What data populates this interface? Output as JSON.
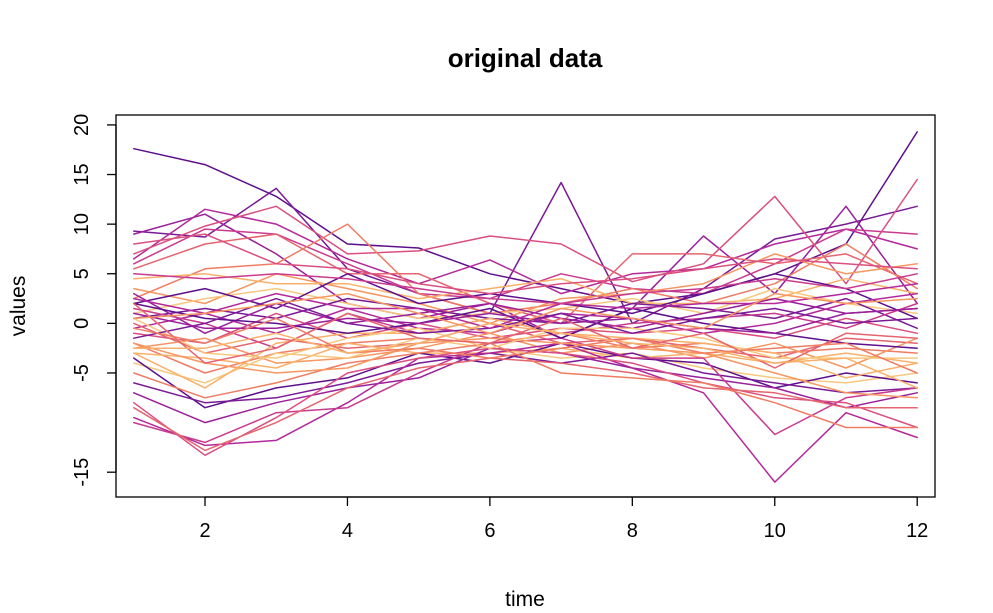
{
  "chart_data": {
    "type": "line",
    "title": "original data",
    "xlabel": "time",
    "ylabel": "values",
    "xlim": [
      0.75,
      12.25
    ],
    "ylim": [
      -17.5,
      21
    ],
    "x": [
      1,
      2,
      3,
      4,
      5,
      6,
      7,
      8,
      9,
      10,
      11,
      12
    ],
    "x_ticks": [
      2,
      4,
      6,
      8,
      10,
      12
    ],
    "y_ticks": [
      -15,
      -5,
      0,
      5,
      10,
      15,
      20
    ],
    "grid": false,
    "legend": "none",
    "palette": [
      "#5e0f8c",
      "#7a1a96",
      "#9a1f9b",
      "#b3289a",
      "#c93b8f",
      "#da4f80",
      "#e5646f",
      "#ef7c63",
      "#f69660",
      "#f9b06a",
      "#f8c87e"
    ],
    "series": [
      {
        "values": [
          17.6,
          16.0,
          12.8,
          8.0,
          7.6,
          5.0,
          3.5,
          2.0,
          3.0,
          5.0,
          8.0,
          19.3
        ]
      },
      {
        "values": [
          9.3,
          8.7,
          13.6,
          5.5,
          3.0,
          1.0,
          14.2,
          0.0,
          3.5,
          8.5,
          10.0,
          11.8
        ]
      },
      {
        "values": [
          9.0,
          11.0,
          7.0,
          2.0,
          0.5,
          2.0,
          -1.5,
          1.5,
          8.8,
          3.0,
          11.8,
          2.0
        ]
      },
      {
        "values": [
          6.5,
          11.5,
          10.0,
          6.5,
          4.0,
          6.4,
          3.0,
          5.0,
          5.5,
          8.0,
          9.5,
          7.5
        ]
      },
      {
        "values": [
          6.0,
          9.5,
          9.0,
          6.0,
          3.0,
          2.5,
          5.0,
          3.5,
          3.0,
          6.0,
          9.5,
          9.0
        ]
      },
      {
        "values": [
          7.0,
          9.8,
          11.8,
          7.0,
          7.3,
          8.8,
          8.0,
          4.2,
          6.0,
          12.8,
          4.0,
          14.5
        ]
      },
      {
        "values": [
          5.5,
          8.0,
          9.0,
          5.0,
          5.0,
          2.0,
          0.0,
          7.0,
          7.0,
          6.0,
          7.0,
          4.0
        ]
      },
      {
        "values": [
          2.5,
          5.5,
          6.0,
          10.0,
          3.0,
          1.0,
          2.0,
          3.5,
          2.0,
          4.0,
          8.0,
          3.5
        ]
      },
      {
        "values": [
          3.5,
          2.0,
          5.0,
          3.5,
          2.0,
          0.0,
          2.5,
          3.0,
          4.0,
          7.0,
          5.0,
          6.0
        ]
      },
      {
        "values": [
          4.5,
          5.0,
          4.0,
          4.0,
          2.5,
          3.5,
          4.5,
          2.0,
          2.0,
          2.5,
          4.5,
          3.0
        ]
      },
      {
        "values": [
          1.0,
          2.5,
          3.5,
          2.0,
          0.5,
          1.0,
          1.5,
          2.5,
          1.0,
          3.5,
          2.0,
          1.0
        ]
      },
      {
        "values": [
          2.0,
          3.5,
          1.5,
          5.0,
          2.0,
          3.0,
          2.0,
          1.0,
          3.0,
          5.0,
          3.5,
          0.5
        ]
      },
      {
        "values": [
          0.5,
          1.5,
          0.5,
          2.5,
          1.5,
          0.5,
          0.0,
          2.0,
          1.5,
          0.5,
          2.5,
          -0.5
        ]
      },
      {
        "values": [
          3.0,
          -1.0,
          2.0,
          0.0,
          1.0,
          2.0,
          0.5,
          -0.5,
          1.0,
          2.5,
          1.0,
          1.5
        ]
      },
      {
        "values": [
          -0.5,
          1.0,
          -1.0,
          1.5,
          -0.5,
          -1.0,
          1.0,
          0.5,
          -1.0,
          0.0,
          2.0,
          3.0
        ]
      },
      {
        "values": [
          1.5,
          0.0,
          -2.5,
          1.0,
          -1.0,
          0.5,
          -1.0,
          0.0,
          0.5,
          1.0,
          -0.5,
          2.0
        ]
      },
      {
        "values": [
          -1.0,
          -2.0,
          1.0,
          -1.5,
          0.0,
          -1.5,
          -0.5,
          -1.0,
          -0.5,
          -1.5,
          0.5,
          -1.0
        ]
      },
      {
        "values": [
          0.0,
          -3.0,
          -1.5,
          -2.5,
          -2.0,
          0.0,
          -2.0,
          -1.5,
          -2.5,
          -3.5,
          -1.5,
          -2.0
        ]
      },
      {
        "values": [
          -2.0,
          -5.0,
          -3.0,
          -2.0,
          -1.5,
          -2.0,
          -1.0,
          -2.5,
          -2.0,
          -3.0,
          -2.5,
          -3.0
        ]
      },
      {
        "values": [
          -2.5,
          -1.5,
          -4.0,
          -3.5,
          -2.5,
          -1.0,
          -3.0,
          -2.0,
          -3.5,
          -2.0,
          -4.5,
          -1.5
        ]
      },
      {
        "values": [
          -3.0,
          -3.5,
          -4.5,
          -2.0,
          -3.0,
          -3.0,
          -2.5,
          -3.5,
          -3.0,
          -4.0,
          -3.0,
          -4.0
        ]
      },
      {
        "values": [
          -4.0,
          -6.0,
          -3.0,
          -3.5,
          -1.5,
          -2.5,
          -3.5,
          -3.0,
          -4.5,
          -5.5,
          -6.0,
          -5.0
        ]
      },
      {
        "values": [
          -3.5,
          -8.5,
          -6.5,
          -5.5,
          -3.0,
          -4.0,
          -2.0,
          -3.5,
          -4.0,
          -6.5,
          -5.0,
          -6.0
        ]
      },
      {
        "values": [
          -6.0,
          -8.0,
          -7.5,
          -6.0,
          -4.0,
          -3.0,
          -4.0,
          -3.0,
          -5.0,
          -6.0,
          -7.0,
          -6.5
        ]
      },
      {
        "values": [
          -7.0,
          -10.0,
          -8.0,
          -6.5,
          -5.5,
          -2.5,
          -3.0,
          -4.5,
          -5.5,
          -6.5,
          -8.5,
          -7.0
        ]
      },
      {
        "values": [
          -9.5,
          -12.3,
          -11.8,
          -8.0,
          -3.5,
          -3.0,
          -2.0,
          -4.5,
          -7.0,
          -16.0,
          -9.0,
          -11.5
        ]
      },
      {
        "values": [
          -10.0,
          -12.0,
          -9.0,
          -8.5,
          -5.0,
          -2.0,
          -1.5,
          -3.5,
          -3.5,
          -11.2,
          -7.5,
          -6.5
        ]
      },
      {
        "values": [
          -8.0,
          -13.3,
          -9.5,
          -5.0,
          -3.5,
          -2.5,
          -3.0,
          -4.0,
          -6.0,
          -7.5,
          -8.0,
          -10.5
        ]
      },
      {
        "values": [
          -8.5,
          -12.8,
          -10.0,
          -6.5,
          -4.5,
          -3.5,
          -4.0,
          -5.0,
          -6.5,
          -7.0,
          -8.5,
          -8.5
        ]
      },
      {
        "values": [
          -5.0,
          -7.5,
          -6.0,
          -4.0,
          -3.0,
          -2.0,
          -5.0,
          -5.5,
          -6.0,
          -8.0,
          -10.5,
          -10.5
        ]
      },
      {
        "values": [
          -2.0,
          -4.0,
          -5.0,
          -4.5,
          -2.0,
          -1.5,
          -2.0,
          -2.5,
          -3.0,
          -5.0,
          -7.0,
          -7.5
        ]
      },
      {
        "values": [
          -3.0,
          -6.5,
          -2.0,
          -1.0,
          -1.0,
          0.5,
          -1.0,
          -1.5,
          -2.0,
          -3.0,
          -5.5,
          -4.0
        ]
      },
      {
        "values": [
          0.5,
          -3.0,
          -3.5,
          -1.5,
          -0.5,
          -2.5,
          -0.5,
          -0.5,
          -1.5,
          -3.5,
          -3.5,
          -3.5
        ]
      },
      {
        "values": [
          2.0,
          0.5,
          0.0,
          -1.0,
          0.0,
          1.5,
          -1.5,
          1.5,
          0.0,
          -1.0,
          -2.0,
          -2.5
        ]
      },
      {
        "values": [
          -1.5,
          0.0,
          2.5,
          0.0,
          -1.0,
          -0.5,
          1.0,
          -1.0,
          0.5,
          1.5,
          0.0,
          0.5
        ]
      },
      {
        "values": [
          1.0,
          -0.5,
          -0.5,
          0.5,
          0.0,
          1.0,
          0.0,
          0.5,
          -0.5,
          -1.0,
          1.0,
          1.5
        ]
      },
      {
        "values": [
          2.5,
          1.0,
          3.0,
          1.5,
          1.5,
          -0.5,
          2.0,
          1.5,
          2.0,
          2.0,
          3.0,
          4.0
        ]
      },
      {
        "values": [
          5.0,
          4.5,
          5.0,
          4.5,
          3.5,
          2.5,
          2.0,
          3.0,
          3.5,
          4.5,
          3.5,
          5.0
        ]
      },
      {
        "values": [
          8.0,
          9.0,
          6.0,
          5.5,
          4.0,
          3.0,
          4.0,
          4.5,
          5.5,
          6.5,
          6.0,
          5.5
        ]
      },
      {
        "values": [
          2.0,
          -4.0,
          -2.5,
          1.0,
          -1.5,
          -2.0,
          0.5,
          -2.5,
          -1.0,
          -4.5,
          -1.0,
          -1.5
        ]
      },
      {
        "values": [
          -0.5,
          -2.0,
          0.5,
          -3.0,
          -2.5,
          -3.5,
          -2.5,
          -1.5,
          -3.0,
          -2.5,
          -2.0,
          -5.0
        ]
      },
      {
        "values": [
          0.5,
          1.0,
          2.0,
          3.0,
          1.0,
          -1.0,
          1.5,
          0.5,
          -0.5,
          3.0,
          2.0,
          2.5
        ]
      },
      {
        "values": [
          -2.5,
          -2.5,
          -1.0,
          -3.0,
          -2.0,
          0.0,
          -1.0,
          -2.0,
          -2.5,
          -4.0,
          -3.5,
          -6.5
        ]
      }
    ]
  }
}
